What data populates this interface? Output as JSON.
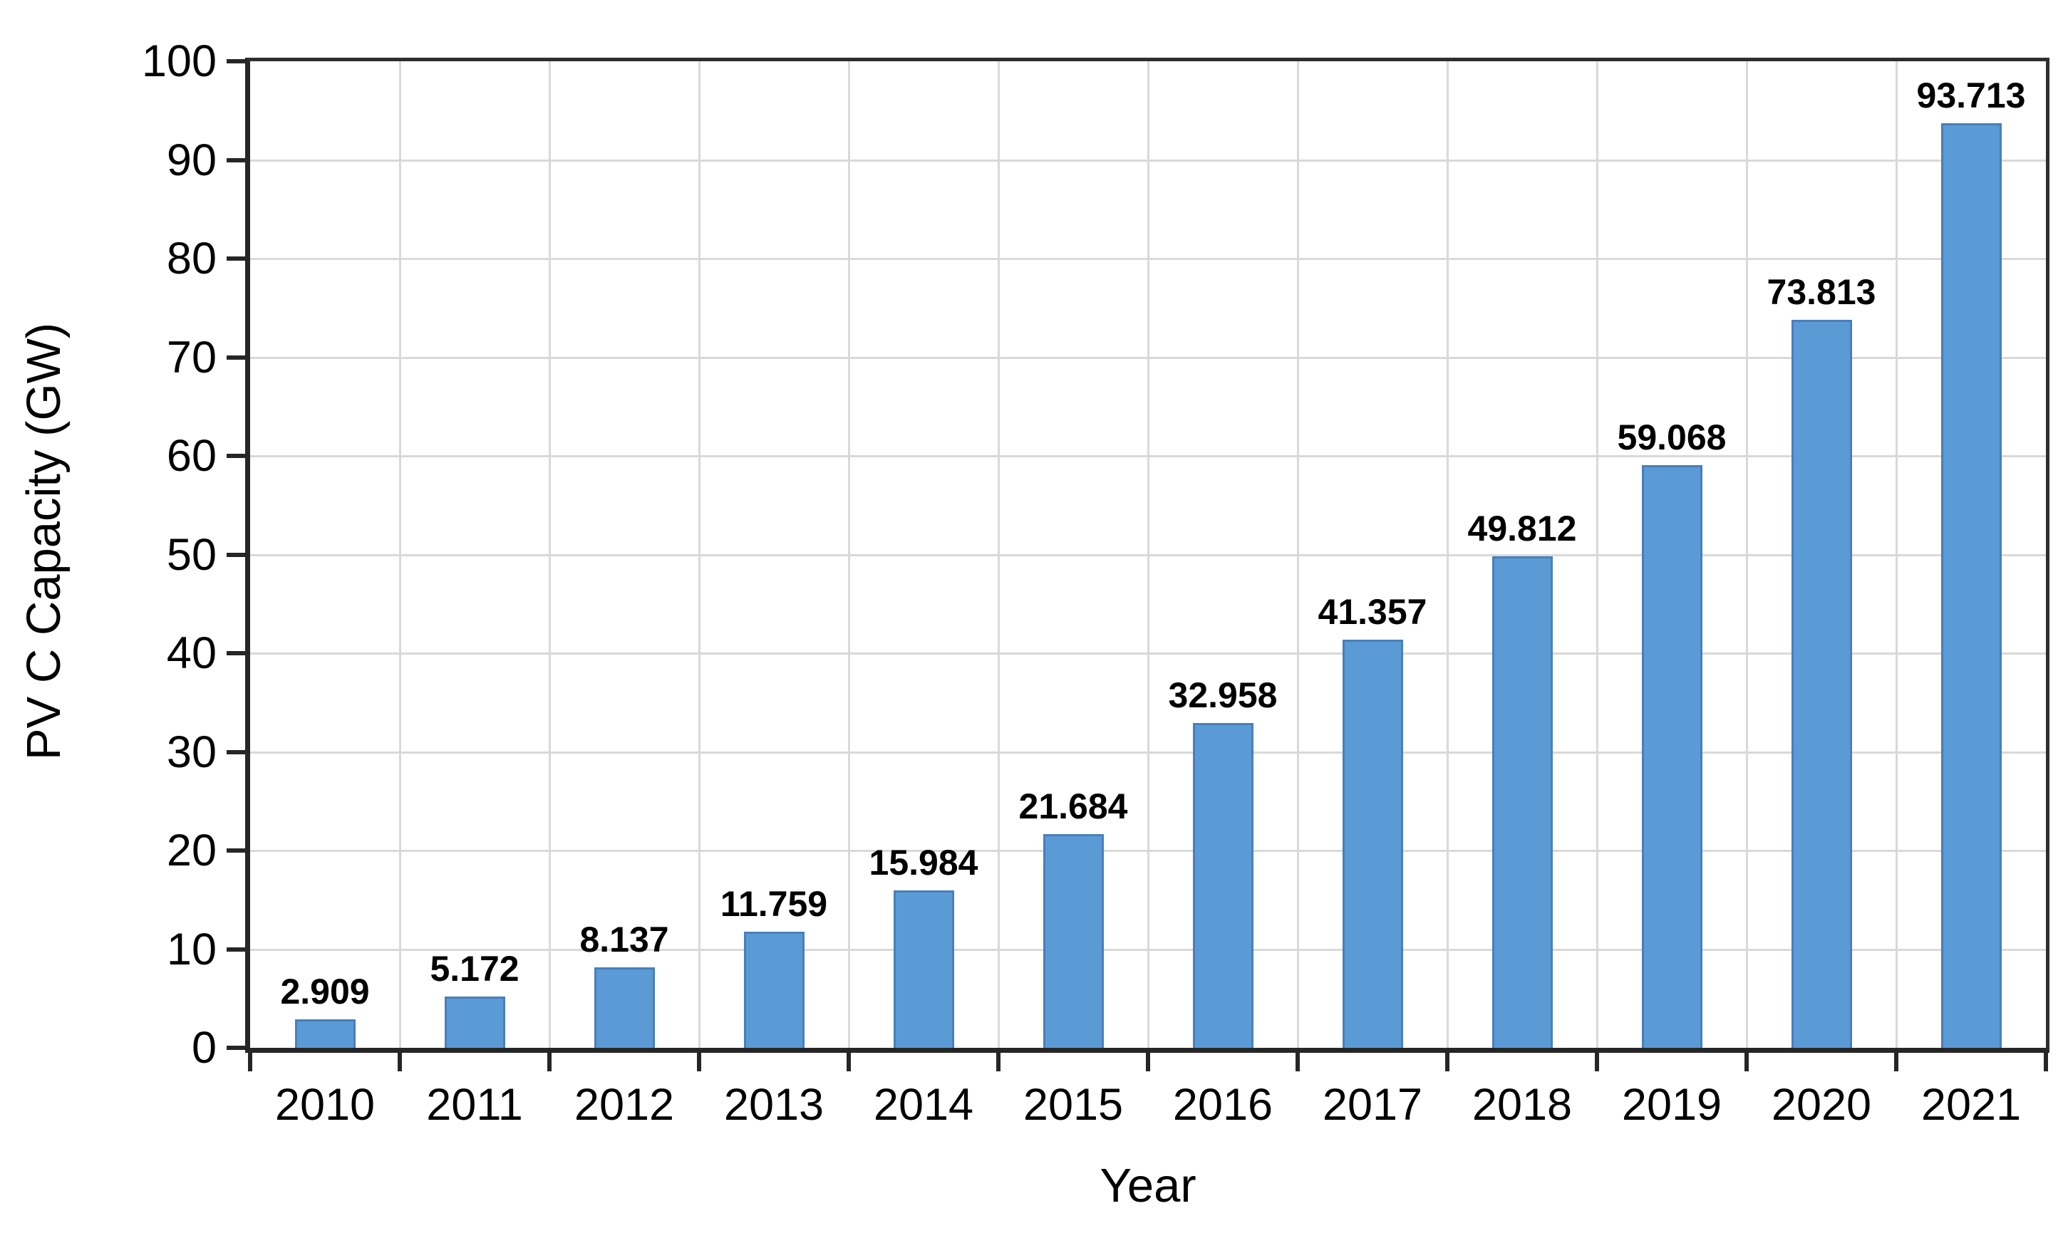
{
  "chart_data": {
    "type": "bar",
    "title": "",
    "xlabel": "Year",
    "ylabel": "PV C Capacity (GW)",
    "categories": [
      "2010",
      "2011",
      "2012",
      "2013",
      "2014",
      "2015",
      "2016",
      "2017",
      "2018",
      "2019",
      "2020",
      "2021"
    ],
    "values": [
      2.909,
      5.172,
      8.137,
      11.759,
      15.984,
      21.684,
      32.958,
      41.357,
      49.812,
      59.068,
      73.813,
      93.713
    ],
    "data_labels": [
      "2.909",
      "5.172",
      "8.137",
      "11.759",
      "15.984",
      "21.684",
      "32.958",
      "41.357",
      "49.812",
      "59.068",
      "73.813",
      "93.713"
    ],
    "ylim": [
      0,
      100
    ],
    "ytick_interval": 10,
    "ytick_labels": [
      "0",
      "10",
      "20",
      "30",
      "40",
      "50",
      "60",
      "70",
      "80",
      "90",
      "100"
    ],
    "grid": true,
    "legend_position": "none",
    "colors": {
      "bar_fill": "#5b9bd5",
      "bar_border": "#4a7ebb",
      "gridline": "#d9d9d9",
      "axis": "#262626",
      "text": "#000000",
      "background": "#ffffff"
    }
  }
}
